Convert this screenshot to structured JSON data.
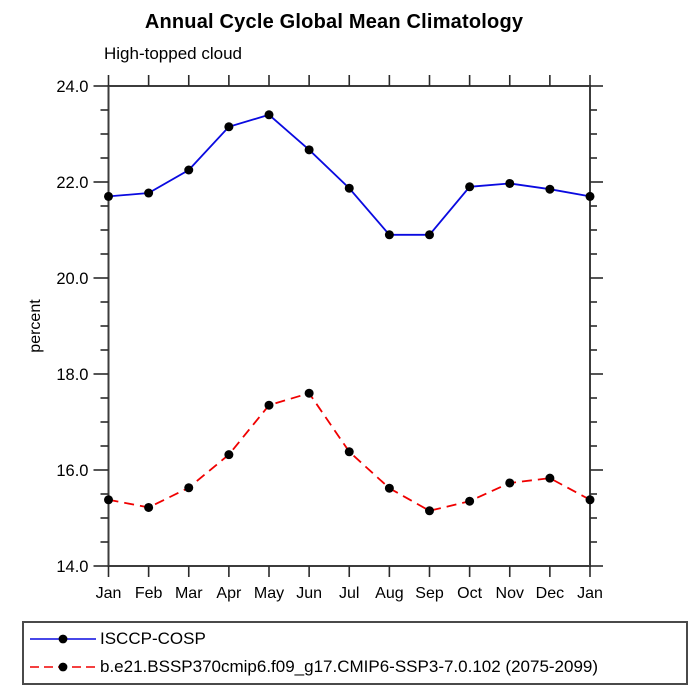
{
  "header": {
    "title": "Annual Cycle Global Mean Climatology",
    "subtitle": "High-topped cloud"
  },
  "chart_data": {
    "type": "line",
    "title": "Annual Cycle Global Mean Climatology",
    "subtitle": "High-topped cloud",
    "xlabel": "",
    "ylabel": "percent",
    "categories": [
      "Jan",
      "Feb",
      "Mar",
      "Apr",
      "May",
      "Jun",
      "Jul",
      "Aug",
      "Sep",
      "Oct",
      "Nov",
      "Dec",
      "Jan"
    ],
    "ylim": [
      14.0,
      24.0
    ],
    "ytick_major": 2.0,
    "ytick_minor": 0.5,
    "ytick_labels": [
      "14.0",
      "16.0",
      "18.0",
      "20.0",
      "22.0",
      "24.0"
    ],
    "grid": false,
    "legend_position": "bottom-left-box",
    "series": [
      {
        "name": "ISCCP-COSP",
        "color": "#0a0ae0",
        "line_style": "solid",
        "marker": "circle",
        "marker_color": "#000000",
        "values": [
          21.7,
          21.77,
          22.25,
          23.15,
          23.4,
          22.67,
          21.87,
          20.9,
          20.9,
          21.9,
          21.97,
          21.85,
          21.7
        ]
      },
      {
        "name": "b.e21.BSSP370cmip6.f09_g17.CMIP6-SSP3-7.0.102 (2075-2099)",
        "color": "#f00000",
        "line_style": "dashed",
        "marker": "circle",
        "marker_color": "#000000",
        "values": [
          15.38,
          15.22,
          15.63,
          16.32,
          17.35,
          17.6,
          16.38,
          15.62,
          15.15,
          15.35,
          15.73,
          15.83,
          15.38
        ]
      }
    ]
  },
  "colors": {
    "axis": "#3c3c3c",
    "tick": "#2a2a2a",
    "text": "#000000",
    "background": "#ffffff"
  }
}
